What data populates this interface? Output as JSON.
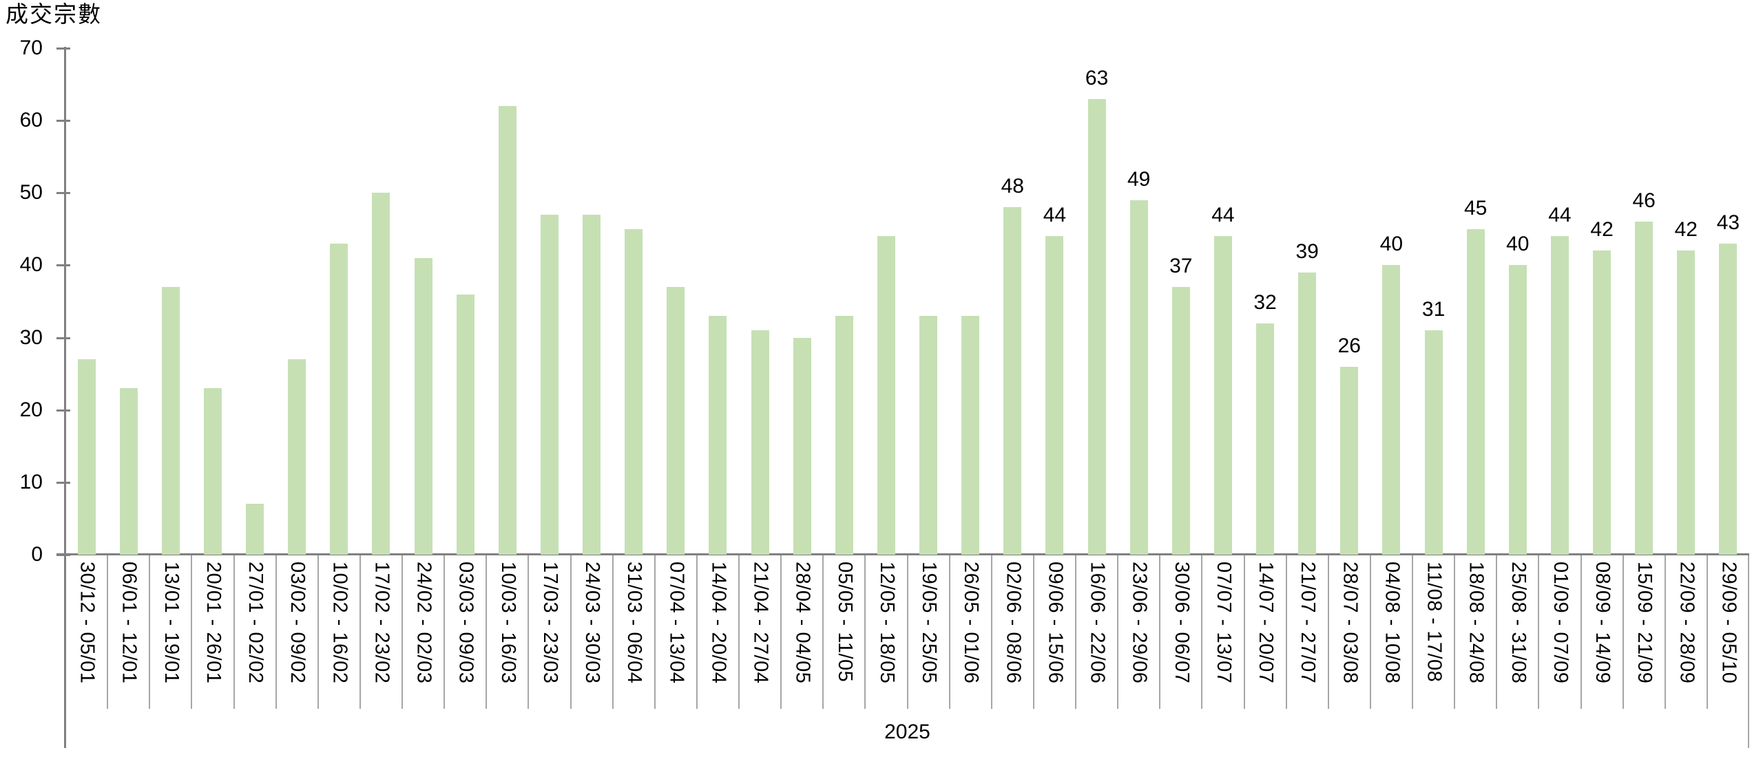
{
  "chart": {
    "y_axis_title": "成交宗數",
    "year_label": "2025"
  },
  "chart_data": {
    "type": "bar",
    "title": "成交宗數",
    "ylabel": "成交宗數",
    "xlabel": "2025",
    "categories": [
      "30/12 - 05/01",
      "06/01 - 12/01",
      "13/01 - 19/01",
      "20/01 - 26/01",
      "27/01 - 02/02",
      "03/02 - 09/02",
      "10/02 - 16/02",
      "17/02 - 23/02",
      "24/02 - 02/03",
      "03/03 - 09/03",
      "10/03 - 16/03",
      "17/03 - 23/03",
      "24/03 - 30/03",
      "31/03 - 06/04",
      "07/04 - 13/04",
      "14/04 - 20/04",
      "21/04 - 27/04",
      "28/04 - 04/05",
      "05/05 - 11/05",
      "12/05 - 18/05",
      "19/05 - 25/05",
      "26/05 - 01/06",
      "02/06 - 08/06",
      "09/06 - 15/06",
      "16/06 - 22/06",
      "23/06 - 29/06",
      "30/06 - 06/07",
      "07/07 - 13/07",
      "14/07 - 20/07",
      "21/07 - 27/07",
      "28/07 - 03/08",
      "04/08 - 10/08",
      "11/08 - 17/08",
      "18/08 - 24/08",
      "25/08 - 31/08",
      "01/09 - 07/09",
      "08/09 - 14/09",
      "15/09 - 21/09",
      "22/09 - 28/09",
      "29/09 - 05/10"
    ],
    "values": [
      27,
      23,
      37,
      23,
      7,
      27,
      43,
      50,
      41,
      36,
      62,
      47,
      47,
      45,
      37,
      33,
      31,
      30,
      33,
      44,
      33,
      33,
      48,
      44,
      63,
      49,
      37,
      44,
      32,
      39,
      26,
      40,
      31,
      45,
      40,
      44,
      42,
      46,
      42,
      43
    ],
    "data_labels": [
      48,
      44,
      63,
      49,
      37,
      44,
      32,
      39,
      26,
      40,
      31,
      45,
      40,
      44,
      42,
      46,
      42,
      43
    ],
    "data_label_start_index": 22,
    "yticks": [
      0,
      10,
      20,
      30,
      40,
      50,
      60,
      70
    ],
    "ylim": [
      0,
      70
    ],
    "grid": false,
    "legend": false,
    "bar_color": "#c6e0b4",
    "axis_color": "#808080",
    "divider_color": "#a6a6a6",
    "text_color": "#000000"
  }
}
